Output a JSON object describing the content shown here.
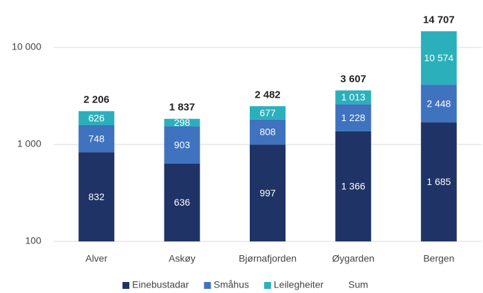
{
  "chart_data": {
    "type": "bar",
    "stacked": true,
    "log_scale": true,
    "grid": true,
    "legend": "bottom",
    "categories": [
      "Alver",
      "Askøy",
      "Bjørnafjorden",
      "Øygarden",
      "Bergen"
    ],
    "series": [
      {
        "name": "Einebustadar",
        "color": "#1f3366",
        "values": [
          832,
          636,
          997,
          1366,
          1685
        ],
        "value_labels": [
          "832",
          "636",
          "997",
          "1 366",
          "1 685"
        ]
      },
      {
        "name": "Småhus",
        "color": "#3f72bf",
        "values": [
          748,
          903,
          808,
          1228,
          2448
        ],
        "value_labels": [
          "748",
          "903",
          "808",
          "1 228",
          "2 448"
        ]
      },
      {
        "name": "Leilegheiter",
        "color": "#2bb0bb",
        "values": [
          626,
          298,
          677,
          1013,
          10574
        ],
        "value_labels": [
          "626",
          "298",
          "677",
          "1 013",
          "10 574"
        ]
      }
    ],
    "sum": {
      "name": "Sum",
      "values": [
        2206,
        1837,
        2482,
        3607,
        14707
      ],
      "value_labels": [
        "2 206",
        "1 837",
        "2 482",
        "3 607",
        "14 707"
      ]
    },
    "ylim": [
      100,
      20000
    ],
    "yticks": [
      100,
      {
        "value": 1000,
        "label": "1 000"
      },
      {
        "value": 10000,
        "label": "10 000"
      }
    ]
  }
}
